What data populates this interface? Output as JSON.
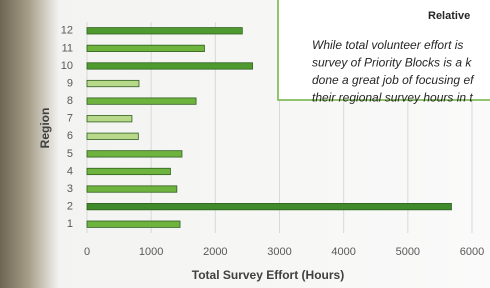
{
  "chart_data": {
    "type": "bar",
    "orientation": "horizontal",
    "x_label": "Total Survey Effort (Hours)",
    "y_label": "Region",
    "categories": [
      "1",
      "2",
      "3",
      "4",
      "5",
      "6",
      "7",
      "8",
      "9",
      "10",
      "11",
      "12"
    ],
    "values": [
      1450,
      5680,
      1400,
      1300,
      1480,
      800,
      700,
      1700,
      810,
      2580,
      1830,
      2420
    ],
    "colors": [
      "#6fb33f",
      "#3f8a2a",
      "#6fb33f",
      "#6fb33f",
      "#6fb33f",
      "#b9d98a",
      "#b9d98a",
      "#6fb33f",
      "#b9d98a",
      "#4f9a2f",
      "#6fb33f",
      "#4f9a2f"
    ],
    "xlim": [
      0,
      6000
    ],
    "xticks": [
      0,
      1000,
      2000,
      3000,
      4000,
      5000,
      6000
    ],
    "grid": true
  },
  "annotation": {
    "title": "Relative",
    "lines": [
      "While total volunteer effort is",
      "survey of Priority Blocks is a k",
      "done a great job of focusing ef",
      "their regional survey hours in t"
    ]
  }
}
